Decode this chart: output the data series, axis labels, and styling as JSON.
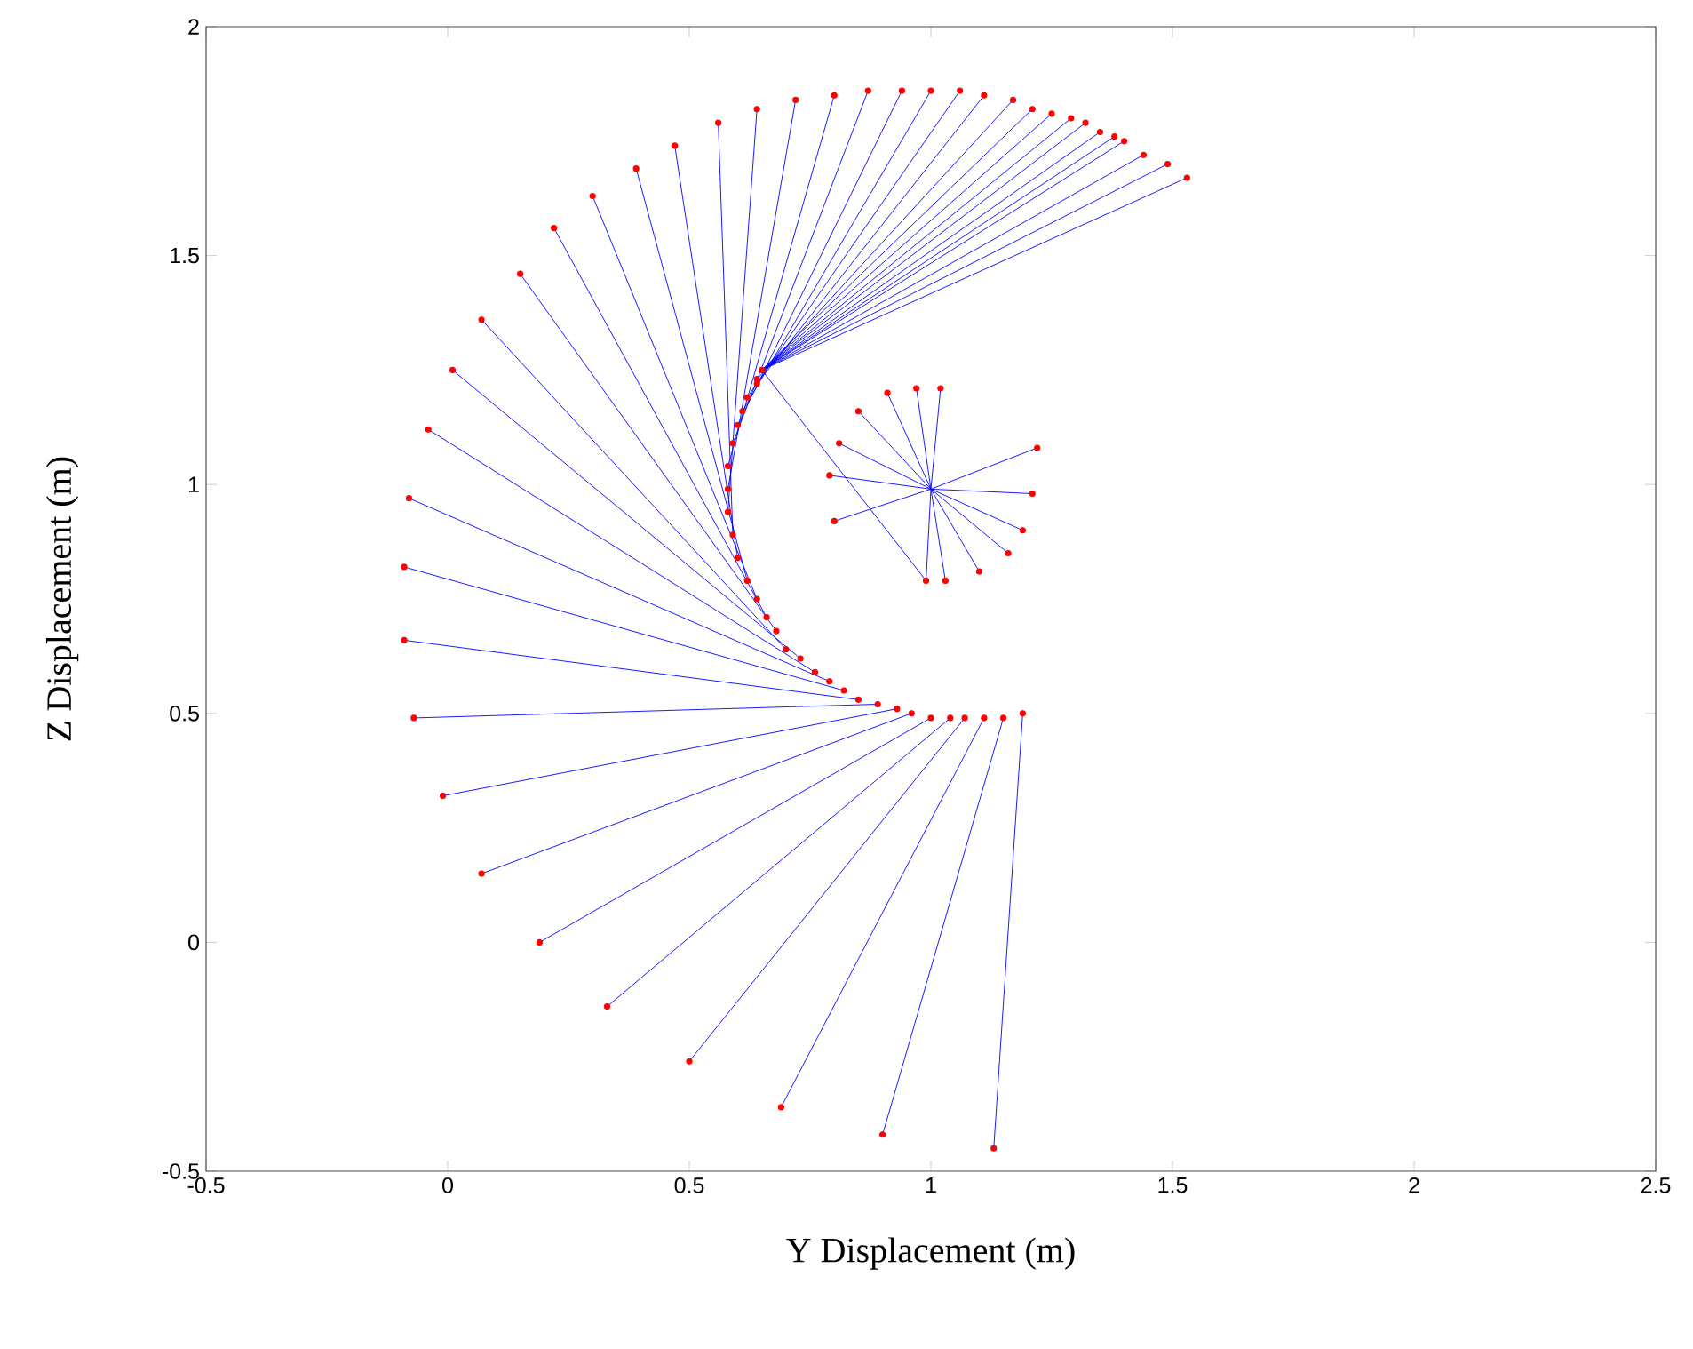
{
  "chart_data": {
    "type": "line",
    "xlabel": "Y Displacement (m)",
    "ylabel": "Z Displacement (m)",
    "xlim": [
      -0.5,
      2.5
    ],
    "ylim": [
      -0.5,
      2
    ],
    "xticks": [
      -0.5,
      0,
      0.5,
      1,
      1.5,
      2,
      2.5
    ],
    "yticks": [
      -0.5,
      0,
      0.5,
      1,
      1.5,
      2
    ],
    "series": [
      {
        "color": "#0000ff",
        "line_style": "solid",
        "x": [
          1.19,
          1.13,
          null,
          1.15,
          0.9,
          null,
          1.11,
          0.69,
          null,
          1.07,
          0.5,
          null,
          1.04,
          0.33,
          null,
          1.0,
          0.19,
          null,
          0.96,
          0.07,
          null,
          0.93,
          -0.01,
          null,
          0.89,
          -0.07,
          null,
          0.85,
          -0.09,
          null,
          0.82,
          -0.09,
          null,
          0.79,
          -0.08,
          null,
          0.76,
          -0.04,
          null,
          0.73,
          0.01,
          null,
          0.7,
          0.07,
          null,
          0.68,
          0.15,
          null,
          0.66,
          0.22,
          null,
          0.64,
          0.3,
          null,
          0.62,
          0.39,
          null,
          0.6,
          0.47,
          null,
          0.59,
          0.56,
          null,
          0.58,
          0.64,
          null,
          0.58,
          0.72,
          null,
          0.58,
          0.8,
          null,
          0.59,
          0.87,
          null,
          0.6,
          0.94,
          null,
          0.61,
          1.0,
          null,
          0.62,
          1.06,
          null,
          0.64,
          1.11,
          null,
          0.64,
          1.17,
          null,
          0.65,
          1.21,
          null,
          0.65,
          1.25,
          null,
          0.65,
          1.29,
          null,
          0.65,
          1.32,
          null,
          0.65,
          1.35,
          null,
          0.65,
          1.38,
          null,
          0.65,
          1.4,
          null,
          0.65,
          1.44,
          null,
          0.65,
          1.49,
          null,
          0.65,
          1.53,
          null,
          0.65,
          0.99,
          null,
          1.0,
          0.8,
          null,
          1.0,
          0.79,
          null,
          1.0,
          0.81,
          null,
          1.0,
          0.85,
          null,
          1.0,
          0.91,
          null,
          1.0,
          0.97,
          null,
          1.0,
          1.02,
          null,
          1.0,
          1.22,
          null,
          1.0,
          1.21,
          null,
          1.0,
          1.19,
          null,
          1.0,
          1.16,
          null,
          1.0,
          1.1,
          null,
          1.0,
          1.03,
          null,
          1.0,
          0.99
        ],
        "values": [
          0.5,
          -0.45,
          null,
          0.49,
          -0.42,
          null,
          0.49,
          -0.36,
          null,
          0.49,
          -0.26,
          null,
          0.49,
          -0.14,
          null,
          0.49,
          0.0,
          null,
          0.5,
          0.15,
          null,
          0.51,
          0.32,
          null,
          0.52,
          0.49,
          null,
          0.53,
          0.66,
          null,
          0.55,
          0.82,
          null,
          0.57,
          0.97,
          null,
          0.59,
          1.12,
          null,
          0.62,
          1.25,
          null,
          0.64,
          1.36,
          null,
          0.68,
          1.46,
          null,
          0.71,
          1.56,
          null,
          0.75,
          1.63,
          null,
          0.79,
          1.69,
          null,
          0.84,
          1.74,
          null,
          0.89,
          1.79,
          null,
          0.94,
          1.82,
          null,
          0.99,
          1.84,
          null,
          1.04,
          1.85,
          null,
          1.09,
          1.86,
          null,
          1.13,
          1.86,
          null,
          1.16,
          1.86,
          null,
          1.19,
          1.86,
          null,
          1.22,
          1.85,
          null,
          1.23,
          1.84,
          null,
          1.25,
          1.82,
          null,
          1.25,
          1.81,
          null,
          1.25,
          1.8,
          null,
          1.25,
          1.79,
          null,
          1.25,
          1.77,
          null,
          1.25,
          1.76,
          null,
          1.25,
          1.75,
          null,
          1.25,
          1.72,
          null,
          1.25,
          1.7,
          null,
          1.25,
          1.67,
          null,
          1.25,
          0.79,
          null,
          0.99,
          0.92,
          null,
          0.99,
          1.02,
          null,
          0.99,
          1.09,
          null,
          0.99,
          1.16,
          null,
          0.99,
          1.2,
          null,
          0.99,
          1.21,
          null,
          0.99,
          1.21,
          null,
          0.99,
          1.08,
          null,
          0.99,
          0.98,
          null,
          0.99,
          0.9,
          null,
          0.99,
          0.85,
          null,
          0.99,
          0.81,
          null,
          0.99,
          0.79,
          null,
          0.99,
          0.79
        ]
      },
      {
        "type": "scatter",
        "color": "#ff0000",
        "x": [
          1.13,
          0.9,
          0.69,
          0.5,
          0.33,
          0.19,
          0.07,
          -0.01,
          -0.07,
          -0.09,
          -0.09,
          -0.08,
          -0.04,
          0.01,
          0.07,
          0.15,
          0.22,
          0.3,
          0.39,
          0.47,
          0.56,
          0.64,
          0.72,
          0.8,
          0.87,
          0.94,
          1.0,
          1.06,
          1.11,
          1.17,
          1.21,
          1.25,
          1.29,
          1.32,
          1.35,
          1.38,
          1.4,
          1.44,
          1.49,
          1.53,
          1.19,
          1.15,
          1.11,
          1.07,
          1.04,
          1.0,
          0.96,
          0.93,
          0.89,
          0.85,
          0.82,
          0.79,
          0.76,
          0.73,
          0.7,
          0.68,
          0.66,
          0.64,
          0.62,
          0.6,
          0.59,
          0.58,
          0.58,
          0.58,
          0.59,
          0.6,
          0.61,
          0.62,
          0.64,
          0.64,
          0.65,
          0.8,
          0.79,
          0.81,
          0.85,
          0.91,
          0.97,
          1.02,
          1.22,
          1.21,
          1.19,
          1.16,
          1.1,
          1.03,
          0.99
        ],
        "values": [
          -0.45,
          -0.42,
          -0.36,
          -0.26,
          -0.14,
          0.0,
          0.15,
          0.32,
          0.49,
          0.66,
          0.82,
          0.97,
          1.12,
          1.25,
          1.36,
          1.46,
          1.56,
          1.63,
          1.69,
          1.74,
          1.79,
          1.82,
          1.84,
          1.85,
          1.86,
          1.86,
          1.86,
          1.86,
          1.85,
          1.84,
          1.82,
          1.81,
          1.8,
          1.79,
          1.77,
          1.76,
          1.75,
          1.72,
          1.7,
          1.67,
          0.5,
          0.49,
          0.49,
          0.49,
          0.49,
          0.49,
          0.5,
          0.51,
          0.52,
          0.53,
          0.55,
          0.57,
          0.59,
          0.62,
          0.64,
          0.68,
          0.71,
          0.75,
          0.79,
          0.84,
          0.89,
          0.94,
          0.99,
          1.04,
          1.09,
          1.13,
          1.16,
          1.19,
          1.22,
          1.23,
          1.25,
          0.92,
          1.02,
          1.09,
          1.16,
          1.2,
          1.21,
          1.21,
          1.08,
          0.98,
          0.9,
          0.85,
          0.81,
          0.79,
          0.79
        ]
      }
    ]
  }
}
